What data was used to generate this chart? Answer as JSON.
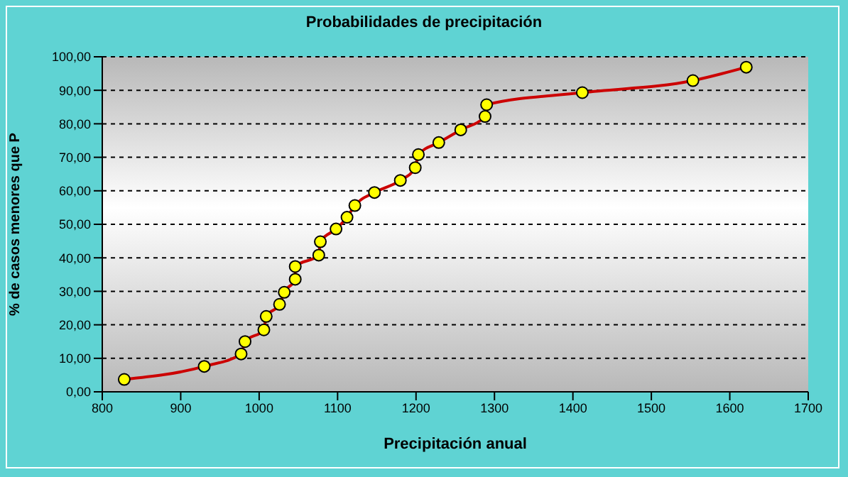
{
  "chart_data": {
    "type": "line",
    "title": "Probabilidades de precipitación",
    "xlabel": "Precipitación anual",
    "ylabel": "% de casos menores que P",
    "x": [
      828,
      930,
      977,
      982,
      1006,
      1009,
      1026,
      1032,
      1046,
      1046,
      1076,
      1078,
      1098,
      1112,
      1122,
      1147,
      1180,
      1199,
      1203,
      1229,
      1257,
      1288,
      1290,
      1412,
      1553,
      1621
    ],
    "series": [
      {
        "color": "#cc0000",
        "values": [
          3.7,
          7.6,
          11.3,
          15.0,
          18.5,
          22.5,
          26.1,
          29.7,
          33.6,
          37.4,
          40.8,
          44.8,
          48.6,
          52.1,
          55.6,
          59.5,
          63.1,
          66.9,
          70.8,
          74.4,
          78.2,
          82.2,
          85.7,
          89.3,
          92.9,
          96.9
        ]
      }
    ],
    "xlim": [
      800,
      1700
    ],
    "xticks": [
      800,
      900,
      1000,
      1100,
      1200,
      1300,
      1400,
      1500,
      1600,
      1700
    ],
    "ylim": [
      0,
      100
    ],
    "yticks": [
      {
        "value": 0,
        "label": "0,00"
      },
      {
        "value": 10,
        "label": "10,00"
      },
      {
        "value": 20,
        "label": "20,00"
      },
      {
        "value": 30,
        "label": "30,00"
      },
      {
        "value": 40,
        "label": "40,00"
      },
      {
        "value": 50,
        "label": "50,00"
      },
      {
        "value": 60,
        "label": "60,00"
      },
      {
        "value": 70,
        "label": "70,00"
      },
      {
        "value": 80,
        "label": "80,00"
      },
      {
        "value": 90,
        "label": "90,00"
      },
      {
        "value": 100,
        "label": "100,00"
      }
    ],
    "grid": "y",
    "marker": "circle",
    "line_style": "solid"
  }
}
